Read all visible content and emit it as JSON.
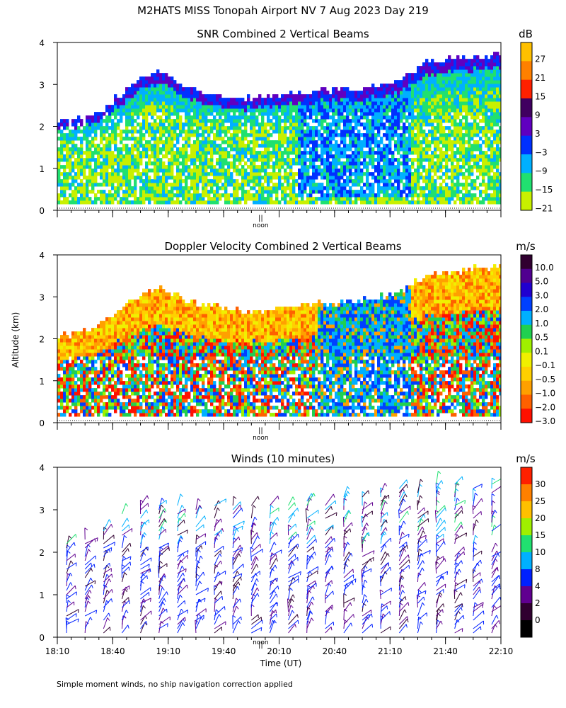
{
  "page": {
    "title": "M2HATS MISS Tonopah Airport NV   7 Aug 2023 Day 219",
    "y_axis_label": "Altitude (km)",
    "x_axis_label": "Time (UT)",
    "footnote": "Simple moment winds, no ship navigation correction applied",
    "noon_label": "noon",
    "noon_marker": "||"
  },
  "chart_data": [
    {
      "type": "heatmap",
      "title": "SNR Combined 2 Vertical Beams",
      "ylabel": "Altitude (km)",
      "ylim": [
        0,
        4
      ],
      "yticks": [
        "0",
        "1",
        "2",
        "3",
        "4"
      ],
      "x_range": [
        "18:10",
        "22:10"
      ],
      "colorbar": {
        "unit": "dB",
        "labels": [
          "27",
          "21",
          "15",
          "9",
          "3",
          "−3",
          "−9",
          "−15",
          "−21"
        ],
        "colors": [
          "#ffc000",
          "#ff8000",
          "#ff2000",
          "#400060",
          "#6000c0",
          "#0030ff",
          "#00b0ff",
          "#20e070",
          "#c8f000"
        ]
      },
      "data_top_km": [
        {
          "t": "18:10",
          "km": 2.1
        },
        {
          "t": "18:30",
          "km": 2.2
        },
        {
          "t": "18:50",
          "km": 3.0
        },
        {
          "t": "19:05",
          "km": 3.3
        },
        {
          "t": "19:20",
          "km": 2.85
        },
        {
          "t": "19:50",
          "km": 2.6
        },
        {
          "t": "20:20",
          "km": 2.75
        },
        {
          "t": "20:50",
          "km": 2.85
        },
        {
          "t": "21:10",
          "km": 3.0
        },
        {
          "t": "21:30",
          "km": 3.5
        },
        {
          "t": "21:50",
          "km": 3.6
        },
        {
          "t": "22:10",
          "km": 3.7
        }
      ]
    },
    {
      "type": "heatmap",
      "title": "Doppler Velocity Combined 2 Vertical Beams",
      "ylabel": "Altitude (km)",
      "ylim": [
        0,
        4
      ],
      "yticks": [
        "0",
        "1",
        "2",
        "3",
        "4"
      ],
      "x_range": [
        "18:10",
        "22:10"
      ],
      "colorbar": {
        "unit": "m/s",
        "labels": [
          "10.0",
          "5.0",
          "3.0",
          "2.0",
          "1.0",
          "0.5",
          "0.1",
          "−0.1",
          "−0.5",
          "−1.0",
          "−2.0",
          "−3.0"
        ],
        "colors": [
          "#300030",
          "#500090",
          "#2000d0",
          "#0040ff",
          "#00b0ff",
          "#20d050",
          "#a0f000",
          "#f0f000",
          "#ffd000",
          "#ffa000",
          "#ff6000",
          "#ff1000"
        ]
      },
      "data_top_km": [
        {
          "t": "18:10",
          "km": 2.0
        },
        {
          "t": "18:30",
          "km": 2.2
        },
        {
          "t": "18:50",
          "km": 2.9
        },
        {
          "t": "19:05",
          "km": 3.2
        },
        {
          "t": "19:20",
          "km": 2.85
        },
        {
          "t": "19:50",
          "km": 2.6
        },
        {
          "t": "20:20",
          "km": 2.75
        },
        {
          "t": "20:50",
          "km": 2.85
        },
        {
          "t": "21:10",
          "km": 3.0
        },
        {
          "t": "21:30",
          "km": 3.5
        },
        {
          "t": "21:50",
          "km": 3.6
        },
        {
          "t": "22:10",
          "km": 3.7
        }
      ]
    },
    {
      "type": "scatter",
      "title": "Winds (10 minutes)",
      "ylabel": "Altitude (km)",
      "xlabel": "Time (UT)",
      "ylim": [
        0,
        4
      ],
      "yticks": [
        "0",
        "1",
        "2",
        "3",
        "4"
      ],
      "xticks": [
        "18:10",
        "18:40",
        "19:10",
        "19:40",
        "20:10",
        "20:40",
        "21:10",
        "21:40",
        "22:10"
      ],
      "interval_minutes": 10,
      "colorbar": {
        "unit": "m/s",
        "labels": [
          "30",
          "25",
          "20",
          "15",
          "10",
          "8",
          "4",
          "2",
          "0"
        ],
        "colors": [
          "#ff2000",
          "#ff8000",
          "#ffc000",
          "#a0f000",
          "#20e070",
          "#00b0ff",
          "#0020ff",
          "#600090",
          "#300030",
          "#000000"
        ]
      },
      "profile_top_km": [
        {
          "t": "18:10",
          "km": 2.2
        },
        {
          "t": "18:30",
          "km": 2.4
        },
        {
          "t": "18:50",
          "km": 3.1
        },
        {
          "t": "19:10",
          "km": 3.2
        },
        {
          "t": "19:40",
          "km": 3.1
        },
        {
          "t": "20:10",
          "km": 3.2
        },
        {
          "t": "20:40",
          "km": 3.3
        },
        {
          "t": "21:10",
          "km": 3.5
        },
        {
          "t": "21:40",
          "km": 3.7
        },
        {
          "t": "22:10",
          "km": 3.6
        }
      ]
    }
  ]
}
